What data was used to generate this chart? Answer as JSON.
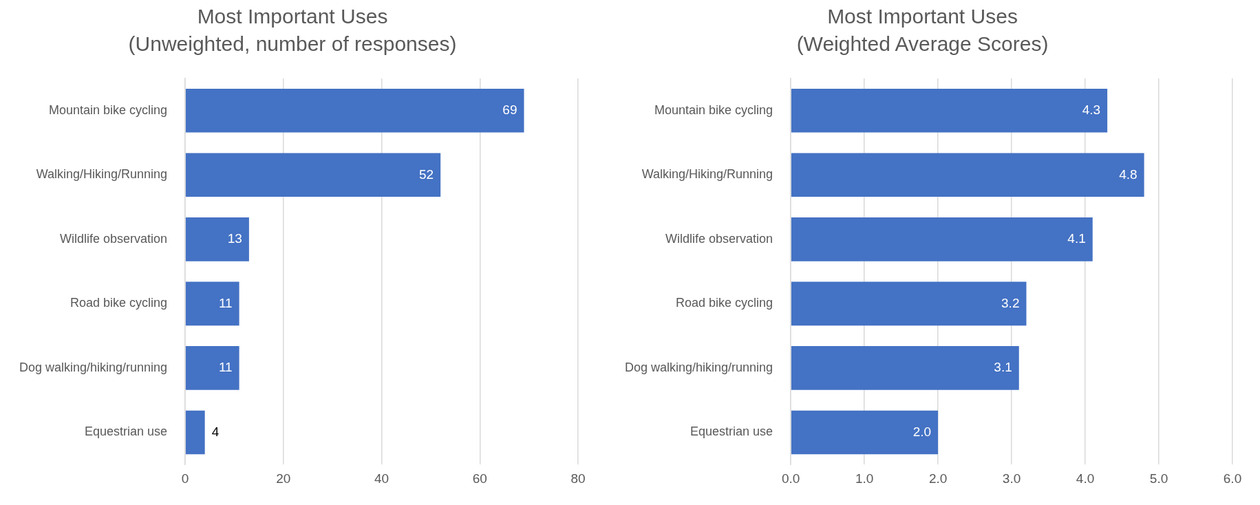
{
  "chart_data": [
    {
      "type": "bar",
      "orientation": "horizontal",
      "title": "Most Important Uses",
      "subtitle": "(Unweighted, number of responses)",
      "categories": [
        "Mountain bike cycling",
        "Walking/Hiking/Running",
        "Wildlife observation",
        "Road bike cycling",
        "Dog walking/hiking/running",
        "Equestrian use"
      ],
      "values": [
        69,
        52,
        13,
        11,
        11,
        4
      ],
      "color": "#4472c4",
      "xlim": [
        0,
        80
      ],
      "xticks": [
        0,
        20,
        40,
        60,
        80
      ],
      "grid": "x",
      "data_labels": true
    },
    {
      "type": "bar",
      "orientation": "horizontal",
      "title": "Most Important Uses",
      "subtitle": "(Weighted Average Scores)",
      "categories": [
        "Mountain bike cycling",
        "Walking/Hiking/Running",
        "Wildlife observation",
        "Road bike cycling",
        "Dog walking/hiking/running",
        "Equestrian use"
      ],
      "values": [
        4.3,
        4.8,
        4.1,
        3.2,
        3.1,
        2.0
      ],
      "value_labels": [
        "4.3",
        "4.8",
        "4.1",
        "3.2",
        "3.1",
        "2.0"
      ],
      "color": "#4472c4",
      "xlim": [
        0,
        6
      ],
      "xticks": [
        {
          "value": 0,
          "label": "0.0"
        },
        {
          "value": 1,
          "label": "1.0"
        },
        {
          "value": 2,
          "label": "2.0"
        },
        {
          "value": 3,
          "label": "3.0"
        },
        {
          "value": 4,
          "label": "4.0"
        },
        {
          "value": 5,
          "label": "5.0"
        },
        {
          "value": 6,
          "label": "6.0"
        }
      ],
      "grid": "x"
    }
  ]
}
